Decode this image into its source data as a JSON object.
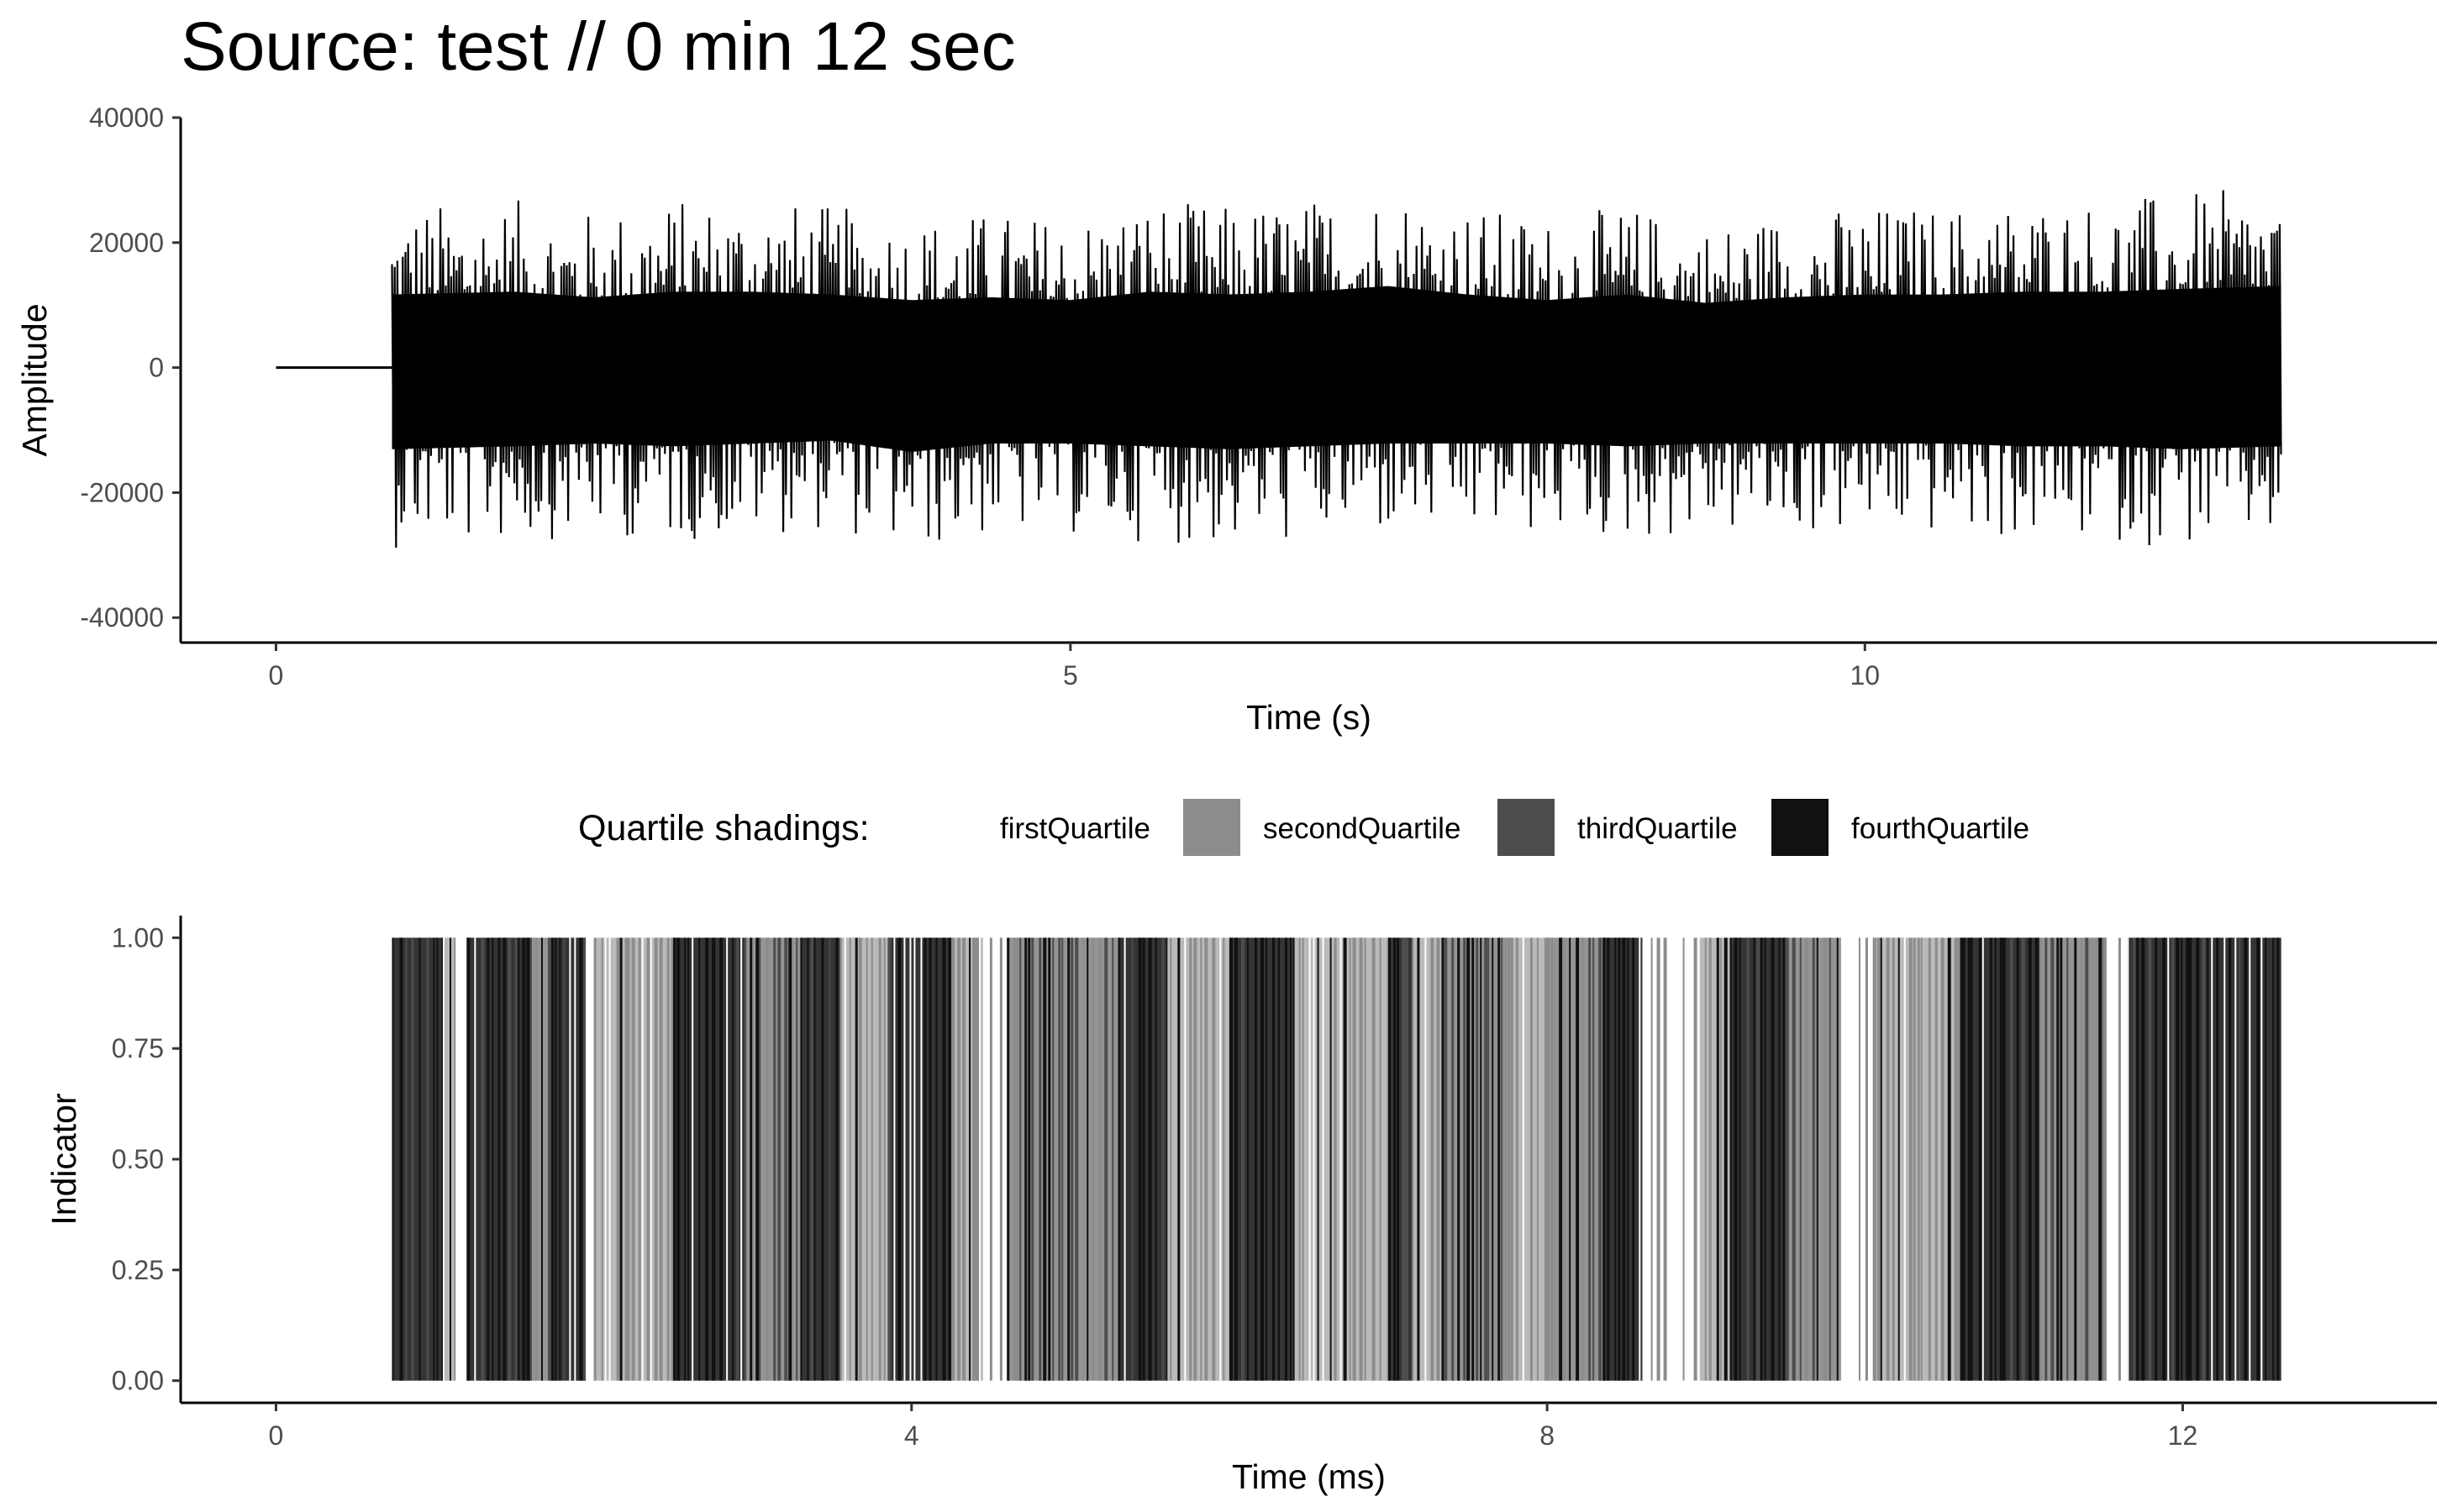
{
  "title": "Source: test // 0 min 12 sec",
  "chart_data": [
    {
      "type": "line",
      "subtype": "waveform",
      "xlabel": "Time (s)",
      "ylabel": "Amplitude",
      "xlim": [
        -0.6,
        13.6
      ],
      "ylim": [
        -44000,
        40000
      ],
      "xticks": [
        0,
        5,
        10
      ],
      "xtick_labels": [
        "0",
        "5",
        "10"
      ],
      "yticks": [
        40000,
        20000,
        0,
        -20000,
        -40000
      ],
      "ytick_labels": [
        "40000",
        "20000",
        "0",
        "-20000",
        "-40000"
      ],
      "grid": false,
      "color": "#000000",
      "silent_segment": {
        "x": [
          0,
          0.73
        ],
        "y": 0
      },
      "signal_start": 0.73,
      "signal_end": 12.62,
      "envelope": {
        "x": [
          0.73,
          1.5,
          2.0,
          2.5,
          3.0,
          3.5,
          4.0,
          4.5,
          5.0,
          5.5,
          6.0,
          6.5,
          7.0,
          7.5,
          8.0,
          8.5,
          9.0,
          9.5,
          10.0,
          10.5,
          11.0,
          11.5,
          12.0,
          12.62
        ],
        "upper": [
          26000,
          27000,
          25000,
          27000,
          27000,
          26000,
          24000,
          25000,
          24000,
          27000,
          26000,
          27000,
          29000,
          26000,
          24000,
          26000,
          23000,
          25000,
          26000,
          26000,
          27000,
          27000,
          28000,
          29000
        ],
        "lower": [
          -29000,
          -28000,
          -27000,
          -28000,
          -27000,
          -26000,
          -30000,
          -27000,
          -27000,
          -28000,
          -29000,
          -28000,
          -27000,
          -27000,
          -27000,
          -28000,
          -27000,
          -27000,
          -27000,
          -27000,
          -28000,
          -28000,
          -29000,
          -28000
        ]
      }
    },
    {
      "type": "bar",
      "subtype": "indicator",
      "xlabel": "Time (ms)",
      "ylabel": "Indicator",
      "xlim": [
        -0.6,
        13.6
      ],
      "ylim": [
        -0.05,
        1.05
      ],
      "xticks": [
        0,
        4,
        8,
        12
      ],
      "xtick_labels": [
        "0",
        "4",
        "8",
        "12"
      ],
      "yticks": [
        0,
        0.25,
        0.5,
        0.75,
        1
      ],
      "ytick_labels": [
        "0.00",
        "0.25",
        "0.50",
        "0.75",
        "1.00"
      ],
      "grid": false,
      "legend": {
        "title": "Quartile shadings:",
        "placement": "top",
        "entries": [
          {
            "label": "firstQuartile",
            "color": "#ffffff"
          },
          {
            "label": "secondQuartile",
            "color": "#8c8c8c"
          },
          {
            "label": "thirdQuartile",
            "color": "#4d4d4d"
          },
          {
            "label": "fourthQuartile",
            "color": "#111111"
          }
        ]
      },
      "bar_value": 1,
      "bar_x_range": [
        0.73,
        12.62
      ],
      "segments": [
        {
          "x": [
            0.73,
            1.05
          ],
          "quartile": 4
        },
        {
          "x": [
            1.05,
            1.12
          ],
          "quartile": 2
        },
        {
          "x": [
            1.12,
            1.2
          ],
          "quartile": 1
        },
        {
          "x": [
            1.2,
            1.6
          ],
          "quartile": 4
        },
        {
          "x": [
            1.6,
            1.75
          ],
          "quartile": 3
        },
        {
          "x": [
            1.75,
            1.95
          ],
          "quartile": 4
        },
        {
          "x": [
            1.95,
            2.0
          ],
          "quartile": 1
        },
        {
          "x": [
            2.0,
            2.5
          ],
          "quartile": 2
        },
        {
          "x": [
            2.5,
            2.95
          ],
          "quartile": 4
        },
        {
          "x": [
            2.95,
            3.3
          ],
          "quartile": 3
        },
        {
          "x": [
            3.3,
            3.55
          ],
          "quartile": 4
        },
        {
          "x": [
            3.55,
            3.85
          ],
          "quartile": 2
        },
        {
          "x": [
            3.85,
            4.25
          ],
          "quartile": 4
        },
        {
          "x": [
            4.25,
            4.45
          ],
          "quartile": 2
        },
        {
          "x": [
            4.45,
            4.6
          ],
          "quartile": 1
        },
        {
          "x": [
            4.6,
            5.3
          ],
          "quartile": 3
        },
        {
          "x": [
            5.3,
            5.6
          ],
          "quartile": 4
        },
        {
          "x": [
            5.6,
            6.0
          ],
          "quartile": 2
        },
        {
          "x": [
            6.0,
            6.4
          ],
          "quartile": 4
        },
        {
          "x": [
            6.4,
            7.0
          ],
          "quartile": 2
        },
        {
          "x": [
            7.0,
            7.15
          ],
          "quartile": 4
        },
        {
          "x": [
            7.15,
            7.35
          ],
          "quartile": 2
        },
        {
          "x": [
            7.35,
            7.75
          ],
          "quartile": 3
        },
        {
          "x": [
            7.75,
            8.0
          ],
          "quartile": 2
        },
        {
          "x": [
            8.0,
            8.35
          ],
          "quartile": 3
        },
        {
          "x": [
            8.35,
            8.6
          ],
          "quartile": 4
        },
        {
          "x": [
            8.6,
            8.95
          ],
          "quartile": 1
        },
        {
          "x": [
            8.95,
            9.15
          ],
          "quartile": 2
        },
        {
          "x": [
            9.15,
            9.5
          ],
          "quartile": 4
        },
        {
          "x": [
            9.5,
            9.85
          ],
          "quartile": 3
        },
        {
          "x": [
            9.85,
            10.05
          ],
          "quartile": 1
        },
        {
          "x": [
            10.05,
            10.6
          ],
          "quartile": 2
        },
        {
          "x": [
            10.6,
            11.1
          ],
          "quartile": 4
        },
        {
          "x": [
            11.1,
            11.5
          ],
          "quartile": 3
        },
        {
          "x": [
            11.5,
            11.65
          ],
          "quartile": 1
        },
        {
          "x": [
            11.65,
            12.62
          ],
          "quartile": 4
        }
      ]
    }
  ]
}
